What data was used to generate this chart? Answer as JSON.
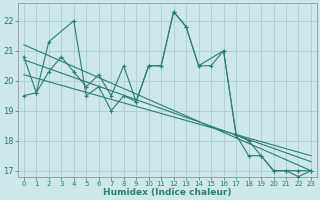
{
  "xlabel": "Humidex (Indice chaleur)",
  "bg_color": "#cce8e8",
  "grid_color": "#aacece",
  "line_color": "#2e7d6e",
  "xlim": [
    -0.5,
    23.5
  ],
  "ylim": [
    16.8,
    22.6
  ],
  "yticks": [
    17,
    18,
    19,
    20,
    21,
    22
  ],
  "xticks": [
    0,
    1,
    2,
    3,
    4,
    5,
    6,
    7,
    8,
    9,
    10,
    11,
    12,
    13,
    14,
    15,
    16,
    17,
    18,
    19,
    20,
    21,
    22,
    23
  ],
  "series1_x": [
    0,
    1,
    2,
    4,
    5,
    6,
    7,
    8,
    9,
    10,
    11,
    12,
    13,
    14,
    16,
    17,
    18,
    19,
    20,
    21,
    22,
    23
  ],
  "series1_y": [
    20.8,
    19.6,
    21.3,
    22.0,
    19.5,
    19.8,
    19.0,
    19.5,
    19.3,
    20.5,
    20.5,
    22.3,
    21.8,
    20.5,
    21.0,
    18.2,
    18.0,
    17.5,
    17.0,
    17.0,
    16.8,
    17.0
  ],
  "series2_x": [
    0,
    1,
    2,
    3,
    4,
    5,
    6,
    7,
    8,
    9,
    10,
    11,
    12,
    13,
    14,
    15,
    16,
    17,
    18,
    19,
    20,
    21,
    22,
    23
  ],
  "series2_y": [
    19.5,
    19.6,
    20.3,
    20.8,
    20.3,
    19.8,
    20.2,
    19.5,
    20.5,
    19.3,
    20.5,
    20.5,
    22.3,
    21.8,
    20.5,
    20.5,
    21.0,
    18.2,
    17.5,
    17.5,
    17.0,
    17.0,
    17.0,
    17.0
  ],
  "trend1_x": [
    0,
    23
  ],
  "trend1_y": [
    21.2,
    17.0
  ],
  "trend2_x": [
    0,
    23
  ],
  "trend2_y": [
    20.7,
    17.3
  ],
  "trend3_x": [
    0,
    23
  ],
  "trend3_y": [
    20.2,
    17.5
  ],
  "marker_size": 2.5
}
